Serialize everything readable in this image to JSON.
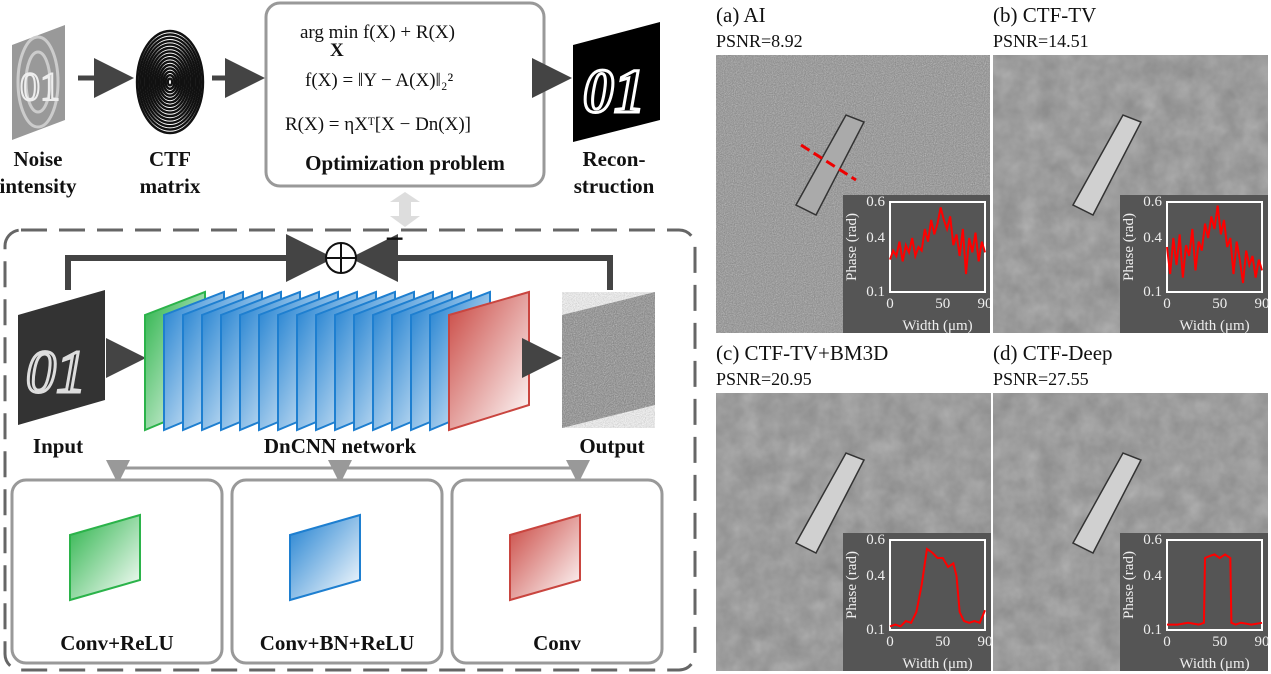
{
  "pipeline": {
    "noise_label": [
      "Noise",
      "intensity"
    ],
    "ctf_label": [
      "CTF",
      "matrix"
    ],
    "recon_label": [
      "Recon-",
      "struction"
    ],
    "optimization": {
      "eq1": "arg min f(X) + R(X)",
      "eq1_sub": "X",
      "eq2": "f(X) = ‖Y − A(X)‖₂²",
      "eq3": "R(X) = ηXᵀ[X − Dn(X)]",
      "title": "Optimization problem"
    },
    "minus_sign": "−",
    "image_text": "01"
  },
  "dncnn": {
    "input_label": "Input",
    "network_label": "DnCNN network",
    "output_label": "Output",
    "blocks": [
      {
        "label": "Conv+ReLU",
        "color": "#2bb34a"
      },
      {
        "label": "Conv+BN+ReLU",
        "color": "#1e7fd0"
      },
      {
        "label": "Conv",
        "color": "#c9453f"
      }
    ]
  },
  "results": {
    "panels": [
      {
        "title": "(a) AI",
        "psnr": "PSNR=8.92"
      },
      {
        "title": "(b) CTF-TV",
        "psnr": "PSNR=14.51"
      },
      {
        "title": "(c) CTF-TV+BM3D",
        "psnr": "PSNR=20.95"
      },
      {
        "title": "(d) CTF-Deep",
        "psnr": "PSNR=27.55"
      }
    ]
  },
  "chart_data": [
    {
      "type": "line",
      "xlabel": "Width (μm)",
      "ylabel": "Phase (rad)",
      "xlim": [
        0,
        90
      ],
      "ylim": [
        0.1,
        0.6
      ],
      "xticks": [
        "0",
        "50",
        "90"
      ],
      "yticks": [
        "0.1",
        "0.4",
        "0.6"
      ],
      "color": "#ff0000",
      "x": [
        0,
        3,
        6,
        9,
        12,
        15,
        18,
        21,
        24,
        27,
        30,
        33,
        36,
        39,
        42,
        45,
        48,
        51,
        54,
        57,
        60,
        63,
        66,
        69,
        72,
        75,
        78,
        81,
        84,
        87,
        90
      ],
      "y": [
        0.28,
        0.33,
        0.3,
        0.38,
        0.27,
        0.36,
        0.32,
        0.4,
        0.3,
        0.35,
        0.33,
        0.45,
        0.38,
        0.5,
        0.42,
        0.48,
        0.57,
        0.5,
        0.45,
        0.52,
        0.36,
        0.42,
        0.3,
        0.45,
        0.2,
        0.4,
        0.32,
        0.43,
        0.27,
        0.38,
        0.32
      ]
    },
    {
      "type": "line",
      "xlabel": "Width (μm)",
      "ylabel": "Phase (rad)",
      "xlim": [
        0,
        90
      ],
      "ylim": [
        0.1,
        0.6
      ],
      "xticks": [
        "0",
        "50",
        "90"
      ],
      "yticks": [
        "0.1",
        "0.4",
        "0.6"
      ],
      "color": "#ff0000",
      "x": [
        0,
        3,
        6,
        9,
        12,
        15,
        18,
        21,
        24,
        27,
        30,
        33,
        36,
        39,
        42,
        45,
        48,
        51,
        54,
        57,
        60,
        63,
        66,
        69,
        72,
        75,
        78,
        81,
        84,
        87,
        90
      ],
      "y": [
        0.35,
        0.2,
        0.4,
        0.25,
        0.42,
        0.18,
        0.36,
        0.3,
        0.45,
        0.22,
        0.38,
        0.33,
        0.48,
        0.4,
        0.52,
        0.45,
        0.58,
        0.42,
        0.5,
        0.35,
        0.4,
        0.2,
        0.38,
        0.28,
        0.15,
        0.33,
        0.25,
        0.3,
        0.18,
        0.28,
        0.22
      ]
    },
    {
      "type": "line",
      "xlabel": "Width (μm)",
      "ylabel": "Phase (rad)",
      "xlim": [
        0,
        90
      ],
      "ylim": [
        0.1,
        0.6
      ],
      "xticks": [
        "0",
        "50",
        "90"
      ],
      "yticks": [
        "0.1",
        "0.4",
        "0.6"
      ],
      "color": "#ff0000",
      "x": [
        0,
        5,
        10,
        15,
        20,
        25,
        30,
        35,
        40,
        45,
        50,
        55,
        60,
        63,
        66,
        70,
        75,
        80,
        85,
        90
      ],
      "y": [
        0.12,
        0.13,
        0.12,
        0.15,
        0.14,
        0.2,
        0.35,
        0.55,
        0.53,
        0.5,
        0.5,
        0.45,
        0.47,
        0.4,
        0.2,
        0.15,
        0.14,
        0.15,
        0.14,
        0.21
      ]
    },
    {
      "type": "line",
      "xlabel": "Width (μm)",
      "ylabel": "Phase (rad)",
      "xlim": [
        0,
        90
      ],
      "ylim": [
        0.1,
        0.6
      ],
      "xticks": [
        "0",
        "50",
        "90"
      ],
      "yticks": [
        "0.1",
        "0.4",
        "0.6"
      ],
      "color": "#ff0000",
      "x": [
        0,
        10,
        20,
        30,
        35,
        36,
        40,
        45,
        50,
        55,
        60,
        61,
        65,
        70,
        80,
        90
      ],
      "y": [
        0.13,
        0.13,
        0.14,
        0.13,
        0.14,
        0.5,
        0.51,
        0.52,
        0.5,
        0.52,
        0.5,
        0.14,
        0.13,
        0.14,
        0.13,
        0.14
      ]
    }
  ]
}
